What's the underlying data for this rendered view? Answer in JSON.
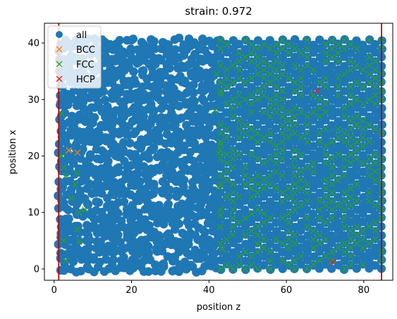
{
  "chart_data": {
    "type": "scatter",
    "title": "strain: 0.972",
    "xlabel": "position z",
    "ylabel": "position x",
    "xlim": [
      -2.5,
      87.5
    ],
    "ylim": [
      -2.0,
      43.5
    ],
    "xticks": [
      0,
      20,
      40,
      60,
      80
    ],
    "yticks": [
      0,
      10,
      20,
      30,
      40
    ],
    "grid": false,
    "legend_position": "upper-left",
    "vertical_lines": [
      {
        "x": 1.2,
        "color": "#c00000"
      },
      {
        "x": 84.6,
        "color": "#c00000"
      }
    ],
    "series": [
      {
        "name": "all",
        "marker": "circle",
        "color": "#1f77b4",
        "disordered_region": {
          "z_range": [
            1.5,
            43.0
          ],
          "x_range": [
            0,
            41.5
          ]
        },
        "lattice_region": {
          "z_start": 43.0,
          "z_end": 84.6,
          "z_step": 1.6,
          "x_step": 1.5
        }
      },
      {
        "name": "BCC",
        "marker": "x",
        "color": "#ff7f0e",
        "points": [
          [
            3.8,
            21.0
          ],
          [
            6.0,
            20.6
          ]
        ]
      },
      {
        "name": "FCC",
        "marker": "x",
        "color": "#2ca02c",
        "points": [
          [
            2.0,
            20.0
          ],
          [
            2.5,
            18.0
          ],
          [
            3.0,
            16.5
          ],
          [
            4.5,
            12.5
          ],
          [
            5.5,
            15.0
          ],
          [
            6.0,
            17.0
          ],
          [
            6.5,
            10.0
          ],
          [
            8.0,
            10.5
          ],
          [
            6.0,
            7.0
          ],
          [
            6.5,
            4.8
          ],
          [
            2.5,
            5.0
          ],
          [
            3.0,
            1.5
          ],
          [
            2.0,
            27.5
          ],
          [
            42.0,
            34.5
          ],
          [
            43.0,
            22.0
          ],
          [
            42.5,
            14.5
          ],
          [
            43.0,
            9.5
          ],
          [
            43.5,
            3.5
          ],
          [
            42.5,
            20.5
          ],
          [
            43.0,
            31.0
          ],
          [
            41.5,
            28.0
          ]
        ]
      },
      {
        "name": "HCP",
        "marker": "x",
        "color": "#d62728",
        "points": [
          [
            68.0,
            31.5
          ],
          [
            72.0,
            1.2
          ]
        ]
      }
    ]
  }
}
